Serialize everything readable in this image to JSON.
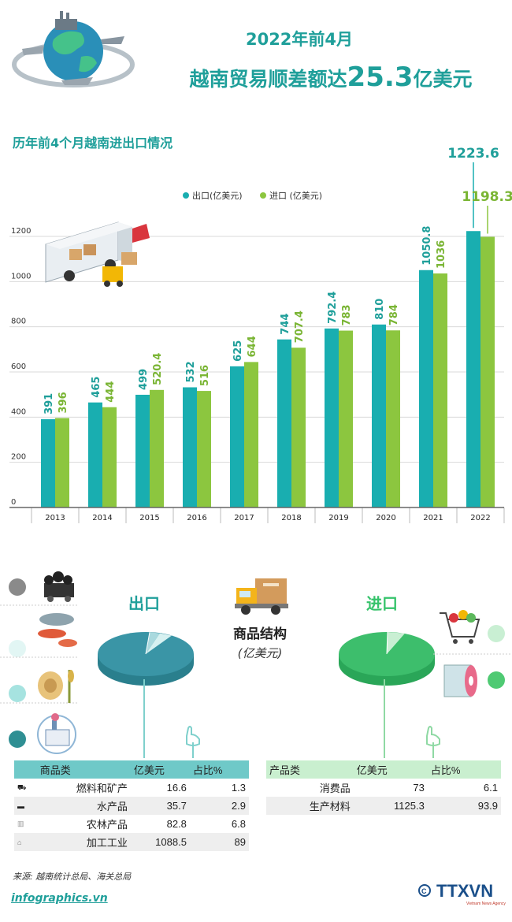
{
  "header": {
    "year_line": "2022年前4月",
    "title_prefix": "越南贸易顺差额达",
    "title_number": "25.3",
    "title_suffix": "亿美元"
  },
  "section_title": "历年前4个月越南进出口情况",
  "colors": {
    "export": "#19aeb0",
    "import": "#8cc63f",
    "teal_text": "#1f9f9a",
    "green_text": "#7ab534"
  },
  "chart_data": {
    "type": "bar",
    "title": "",
    "categories": [
      "2013",
      "2014",
      "2015",
      "2016",
      "2017",
      "2018",
      "2019",
      "2020",
      "2021",
      "2022"
    ],
    "series": [
      {
        "name": "出口(亿美元)",
        "values": [
          391,
          465,
          499,
          532,
          625,
          744,
          792.4,
          810,
          1050.8,
          1223.6
        ]
      },
      {
        "name": "进口 (亿美元)",
        "values": [
          396,
          444,
          520.4,
          516,
          644,
          707.4,
          783,
          784,
          1036,
          1198.3
        ]
      }
    ],
    "value_labels": [
      [
        "391",
        "465",
        "499",
        "532",
        "625",
        "744",
        "792.4",
        "810",
        "1050.8",
        "1223.6"
      ],
      [
        "396",
        "444",
        "520.4",
        "516",
        "644",
        "707.4",
        "783",
        "784",
        "1036",
        "1198.3"
      ]
    ],
    "yticks": [
      "0",
      "200",
      "400",
      "600",
      "800",
      "1000",
      "1200"
    ],
    "ylim": [
      0,
      1200
    ],
    "grid": true,
    "legend": "top-center"
  },
  "structure": {
    "title": "商品结构",
    "unit": "(亿美元)",
    "export_title": "出口",
    "import_title": "进口"
  },
  "export_table": {
    "headers": [
      "商品类",
      "亿美元",
      "占比%"
    ],
    "rows": [
      {
        "icon": "coal-cart-icon",
        "name": "燃料和矿产",
        "value": "16.6",
        "share": "1.3"
      },
      {
        "icon": "seafood-icon",
        "name": "水产品",
        "value": "35.7",
        "share": "2.9"
      },
      {
        "icon": "agriculture-icon",
        "name": "农林产品",
        "value": "82.8",
        "share": "6.8"
      },
      {
        "icon": "factory-icon",
        "name": "加工工业",
        "value": "1088.5",
        "share": "89"
      }
    ]
  },
  "import_table": {
    "headers": [
      "产品类",
      "亿美元",
      "占比%"
    ],
    "rows": [
      {
        "icon": "shopping-cart-icon",
        "name": "消费品",
        "value": "73",
        "share": "6.1"
      },
      {
        "icon": "fabric-roll-icon",
        "name": "生产材料",
        "value": "1125.3",
        "share": "93.9"
      }
    ]
  },
  "footer": {
    "source": "来源: 越南统计总局、海关总局",
    "site": "infographics.vn",
    "logo_text": "TTXVN",
    "logo_sub": "Vietnam News Agency"
  }
}
